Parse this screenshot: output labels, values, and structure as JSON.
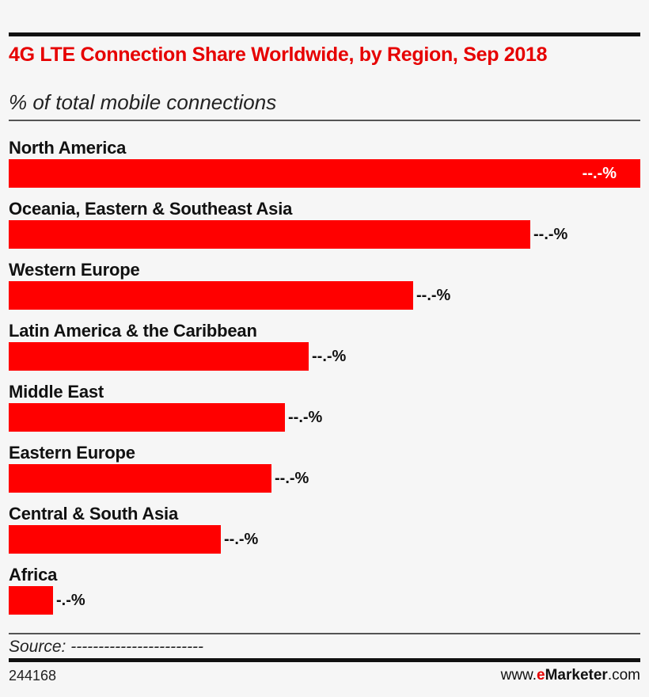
{
  "chart_data": {
    "type": "bar",
    "orientation": "horizontal",
    "title": "4G LTE Connection Share Worldwide, by Region, Sep 2018",
    "subtitle": "% of total mobile connections",
    "categories": [
      "North America",
      "Oceania, Eastern & Southeast Asia",
      "Western Europe",
      "Latin America & the Caribbean",
      "Middle East",
      "Eastern Europe",
      "Central & South Asia",
      "Africa"
    ],
    "values_relative_to_largest": [
      1.0,
      0.826,
      0.64,
      0.475,
      0.437,
      0.416,
      0.336,
      0.07
    ],
    "data_labels": [
      "--.-%",
      "--.-%",
      "--.-%",
      "--.-%",
      "--.-%",
      "--.-%",
      "--.-%",
      "-.-%"
    ],
    "bar_color": "#ff0000",
    "grid": false,
    "legend": "none"
  },
  "source": "Source: ------------------------",
  "footer": {
    "id": "244168",
    "brand_prefix": "www.",
    "brand_e": "e",
    "brand_name": "Marketer",
    "brand_suffix": ".com"
  },
  "colors": {
    "title": "#e60000",
    "background": "#f6f6f6"
  }
}
